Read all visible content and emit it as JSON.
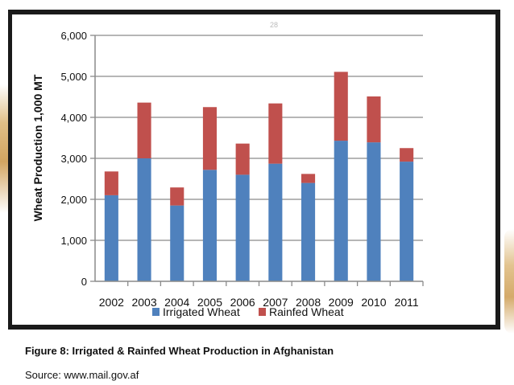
{
  "chart_data": {
    "type": "bar",
    "stacked": true,
    "title": "",
    "xlabel": "",
    "ylabel": "Wheat Production 1,000 MT",
    "ylim": [
      0,
      6000
    ],
    "yticks": [
      "0",
      "1,000",
      "2,000",
      "3,000",
      "4,000",
      "5,000",
      "6,000"
    ],
    "ytick_values": [
      0,
      1000,
      2000,
      3000,
      4000,
      5000,
      6000
    ],
    "grid": true,
    "legend_position": "bottom",
    "categories": [
      "2002",
      "2003",
      "2004",
      "2005",
      "2006",
      "2007",
      "2008",
      "2009",
      "2010",
      "2011"
    ],
    "series": [
      {
        "name": "Irrigated Wheat",
        "color": "#4f81bd",
        "values": [
          2100,
          3000,
          1850,
          2720,
          2600,
          2870,
          2400,
          3430,
          3390,
          2920
        ]
      },
      {
        "name": "Rainfed Wheat",
        "color": "#c0504d",
        "values": [
          580,
          1360,
          440,
          1530,
          760,
          1470,
          220,
          1680,
          1120,
          330
        ]
      }
    ]
  },
  "page_number": "28",
  "caption": "Figure 8: Irrigated & Rainfed Wheat Production in Afghanistan",
  "source": "Source: www.mail.gov.af"
}
